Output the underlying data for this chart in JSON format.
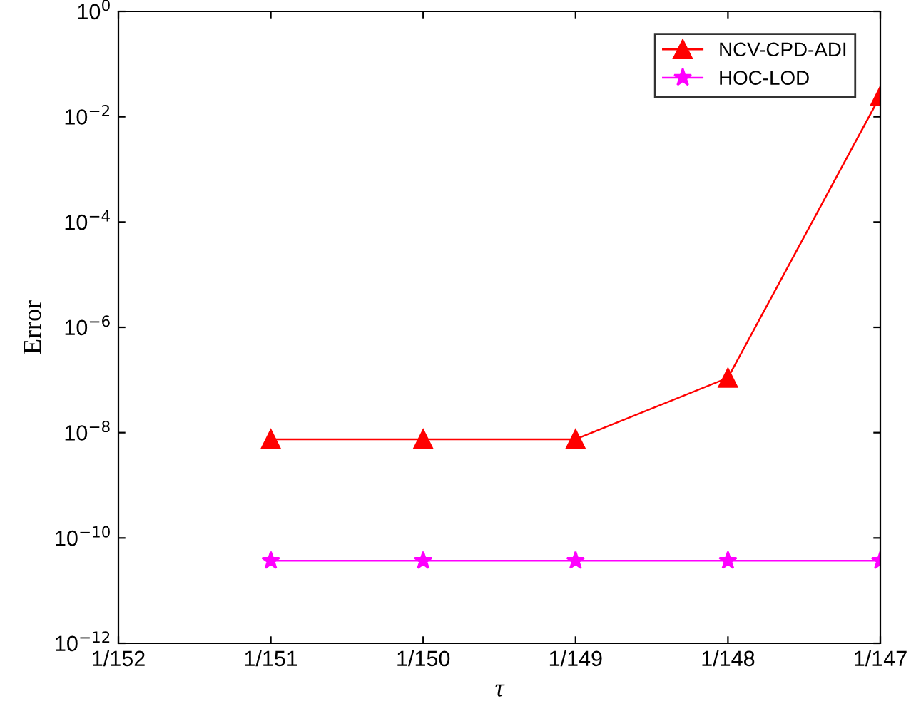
{
  "chart_data": {
    "type": "line",
    "xlabel": "τ",
    "ylabel": "Error",
    "log": "y",
    "grid": false,
    "legend": "top right",
    "line_style": "solid",
    "categories": [
      "1/152",
      "1/151",
      "1/150",
      "1/149",
      "1/148",
      "1/147"
    ],
    "ylim": [
      1e-12,
      1
    ],
    "yticks": [
      {
        "value": 1e-12,
        "label": "10$^{−12}$"
      },
      {
        "value": 1e-10,
        "label": "10$^{−10}$"
      },
      {
        "value": 1e-08,
        "label": "10$^{−8}$"
      },
      {
        "value": 1e-06,
        "label": "10$^{−6}$"
      },
      {
        "value": 0.0001,
        "label": "10$^{−4}$"
      },
      {
        "value": 0.01,
        "label": "10$^{−2}$"
      },
      {
        "value": 1,
        "label": "10$^{0}$"
      }
    ],
    "series": [
      {
        "name": "NCV-CPD-ADI",
        "color": "#ff0000",
        "marker": "triangle",
        "values": [
          null,
          7.5e-09,
          7.5e-09,
          7.5e-09,
          1.1e-07,
          0.025
        ]
      },
      {
        "name": "HOC-LOD",
        "color": "#ff00ff",
        "marker": "star",
        "values": [
          null,
          3.7e-11,
          3.7e-11,
          3.7e-11,
          3.7e-11,
          3.7e-11
        ]
      }
    ]
  }
}
